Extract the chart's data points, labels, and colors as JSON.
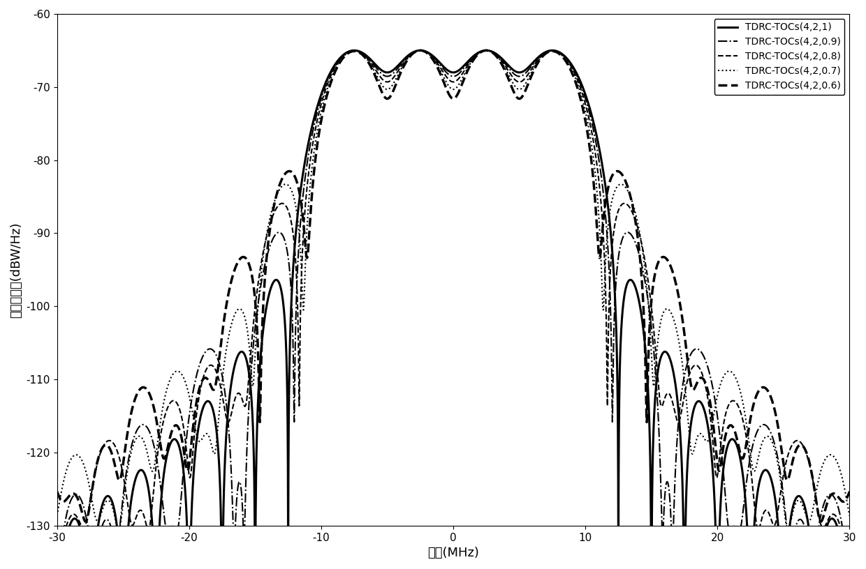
{
  "title": "",
  "xlabel": "频率(MHz)",
  "ylabel": "功率谱密度(dBW/Hz)",
  "xlim": [
    -30,
    30
  ],
  "ylim": [
    -130,
    -60
  ],
  "xticks": [
    -30,
    -20,
    -10,
    0,
    10,
    20,
    30
  ],
  "yticks": [
    -130,
    -120,
    -110,
    -100,
    -90,
    -80,
    -70,
    -60
  ],
  "legend_labels": [
    "TDRC-TOCs(4,2,1)",
    "TDRC-TOCs(4,2,0.9)",
    "TDRC-TOCs(4,2,0.8)",
    "TDRC-TOCs(4,2,0.7)",
    "TDRC-TOCs(4,2,0.6)"
  ],
  "alphas": [
    1.0,
    0.9,
    0.8,
    0.7,
    0.6
  ],
  "line_styles": [
    "-",
    "-.",
    "--",
    ":",
    "--"
  ],
  "line_widths": [
    2.2,
    1.5,
    1.5,
    1.5,
    2.5
  ],
  "N": 4,
  "L": 2,
  "symbol_rate": 5.0,
  "peak_db": -65.0,
  "background_color": "white",
  "legend_fontsize": 10,
  "axis_fontsize": 13,
  "tick_fontsize": 11
}
